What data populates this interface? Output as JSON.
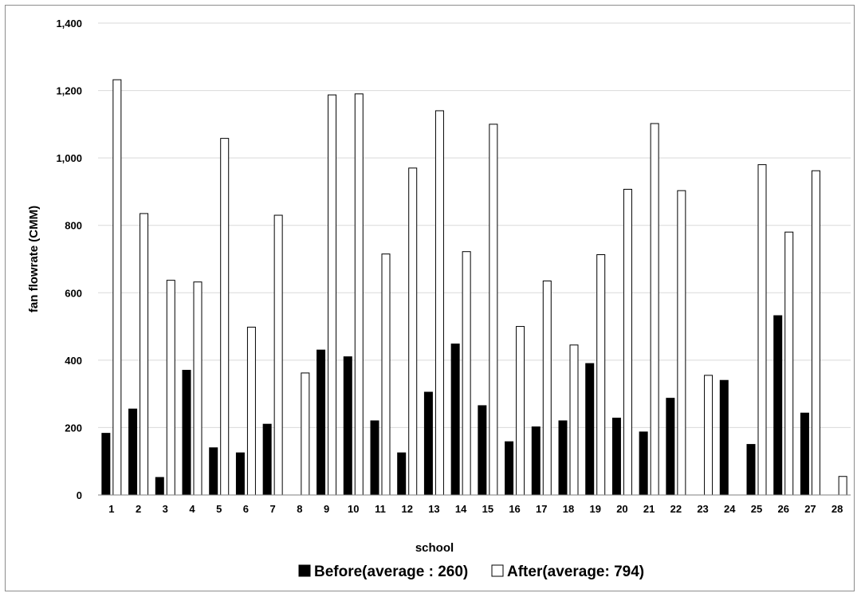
{
  "chart_data": {
    "type": "bar",
    "title": "",
    "xlabel": "school",
    "ylabel": "fan flowrate (CMM)",
    "ylim": [
      0,
      1400
    ],
    "yticks": [
      0,
      200,
      400,
      600,
      800,
      1000,
      1200,
      1400
    ],
    "ytick_labels": [
      "0",
      "200",
      "400",
      "600",
      "800",
      "1,000",
      "1,200",
      "1,400"
    ],
    "grid": true,
    "legend_position": "bottom",
    "categories": [
      "1",
      "2",
      "3",
      "4",
      "5",
      "6",
      "7",
      "8",
      "9",
      "10",
      "11",
      "12",
      "13",
      "14",
      "15",
      "16",
      "17",
      "18",
      "19",
      "20",
      "21",
      "22",
      "23",
      "24",
      "25",
      "26",
      "27",
      "28"
    ],
    "series": [
      {
        "name": "Before(average : 260)",
        "color": "#000000",
        "values": [
          183,
          255,
          52,
          370,
          140,
          125,
          210,
          0,
          430,
          410,
          220,
          125,
          305,
          448,
          265,
          158,
          202,
          220,
          390,
          228,
          187,
          287,
          0,
          340,
          150,
          532,
          243,
          0
        ]
      },
      {
        "name": "After(average: 794)",
        "color": "#ffffff",
        "values": [
          1232,
          835,
          637,
          632,
          1058,
          498,
          830,
          362,
          1187,
          1190,
          715,
          970,
          1140,
          722,
          1100,
          500,
          635,
          445,
          713,
          907,
          1102,
          903,
          355,
          0,
          980,
          780,
          962,
          55
        ]
      }
    ]
  }
}
